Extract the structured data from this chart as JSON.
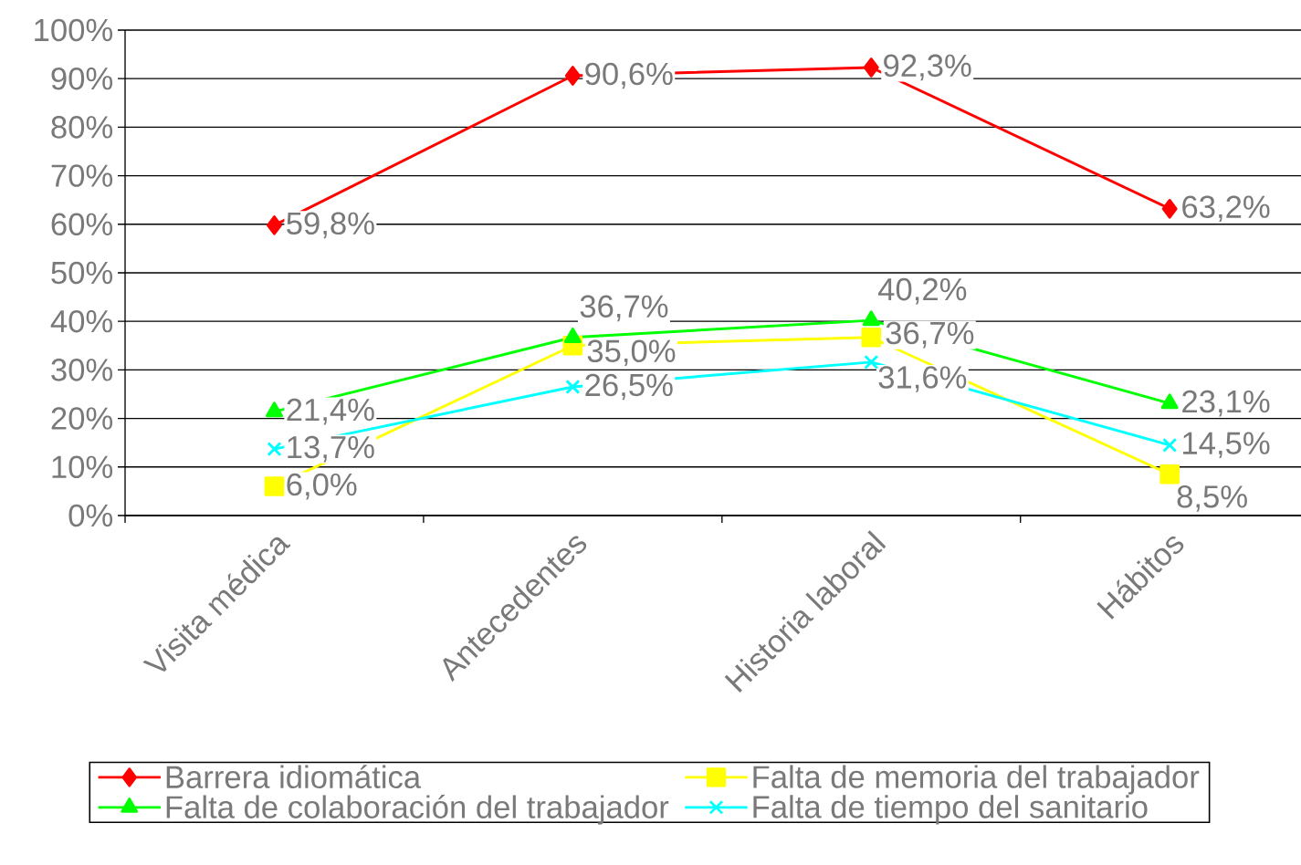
{
  "chart_data": {
    "type": "line",
    "categories": [
      "Visita médica",
      "Antecedentes",
      "Historia laboral",
      "Hábitos"
    ],
    "series": [
      {
        "name": "Barrera idiomática",
        "color": "#ff0000",
        "marker": "diamond",
        "values": [
          59.8,
          90.6,
          92.3,
          63.2
        ],
        "value_labels": [
          "59,8%",
          "90,6%",
          "92,3%",
          "63,2%"
        ]
      },
      {
        "name": "Falta de memoria del trabajador",
        "color": "#ffff00",
        "marker": "square",
        "values": [
          6.0,
          35.0,
          36.7,
          8.5
        ],
        "value_labels": [
          "6,0%",
          "35,0%",
          "36,7%",
          "8,5%"
        ]
      },
      {
        "name": "Falta de colaboración del trabajador",
        "color": "#00ff00",
        "marker": "triangle",
        "values": [
          21.4,
          36.7,
          40.2,
          23.1
        ],
        "value_labels": [
          "21,4%",
          "36,7%",
          "40,2%",
          "23,1%"
        ]
      },
      {
        "name": "Falta de tiempo del sanitario",
        "color": "#00ffff",
        "marker": "cross",
        "values": [
          13.7,
          26.5,
          31.6,
          14.5
        ],
        "value_labels": [
          "13,7%",
          "26,5%",
          "31,6%",
          "14,5%"
        ]
      }
    ],
    "ylim": [
      0,
      100
    ],
    "yticks": [
      {
        "value": 0,
        "label": "0%"
      },
      {
        "value": 10,
        "label": "10%"
      },
      {
        "value": 20,
        "label": "20%"
      },
      {
        "value": 30,
        "label": "30%"
      },
      {
        "value": 40,
        "label": "40%"
      },
      {
        "value": 50,
        "label": "50%"
      },
      {
        "value": 60,
        "label": "60%"
      },
      {
        "value": 70,
        "label": "70%"
      },
      {
        "value": 80,
        "label": "80%"
      },
      {
        "value": 90,
        "label": "90%"
      },
      {
        "value": 100,
        "label": "100%"
      }
    ],
    "grid": "y",
    "legend": "bottom",
    "line_style": "solid"
  }
}
